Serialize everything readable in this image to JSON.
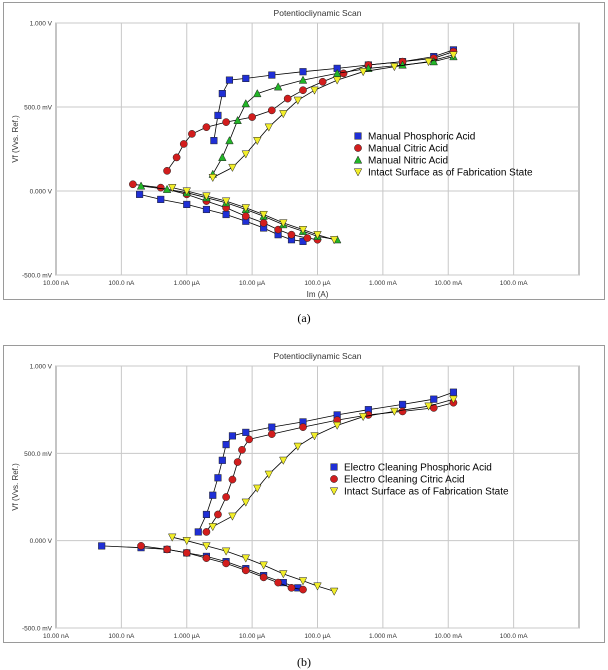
{
  "captions": [
    "(a)",
    "(b)"
  ],
  "colors": {
    "phosphoric": "#1f2fd6",
    "citric": "#d21d1d",
    "nitric": "#22b527",
    "intact": "#f2ee2a",
    "grid": "#c8c8c8",
    "line": "#000000"
  },
  "chart_data": [
    {
      "type": "scatter",
      "title": "Potentiocliynamic Scan",
      "xlabel": "Im  (A)",
      "ylabel": "Vf (Vvs. Ref.)",
      "x_scale": "log",
      "xlim": [
        1e-08,
        1
      ],
      "ylim": [
        -0.5,
        1.0
      ],
      "x_tick_values": [
        1e-08,
        1e-07,
        1e-06,
        1e-05,
        0.0001,
        0.001,
        0.01,
        0.1
      ],
      "x_tick_labels": [
        "10.00 nA",
        "100.0 nA",
        "1.000 µA",
        "10.00 µA",
        "100.0 µA",
        "1.000 mA",
        "10.00 mA",
        "100.0 mA"
      ],
      "y_tick_values": [
        -0.5,
        0.0,
        0.5,
        1.0
      ],
      "y_tick_labels": [
        "-500.0 mV",
        "0.000 V",
        "500.0 mV",
        "1.000 V"
      ],
      "grid": true,
      "legend_position": "right",
      "series": [
        {
          "name": "Manual Phosphoric Acid",
          "marker": "square",
          "color_key": "phosphoric",
          "cathodic": [
            [
              1.9e-07,
              -0.02
            ],
            [
              4e-07,
              -0.05
            ],
            [
              1e-06,
              -0.08
            ],
            [
              2e-06,
              -0.11
            ],
            [
              4e-06,
              -0.14
            ],
            [
              8e-06,
              -0.18
            ],
            [
              1.5e-05,
              -0.22
            ],
            [
              2.5e-05,
              -0.26
            ],
            [
              4e-05,
              -0.29
            ],
            [
              6e-05,
              -0.3
            ]
          ],
          "anodic": [
            [
              2.6e-06,
              0.3
            ],
            [
              3e-06,
              0.45
            ],
            [
              3.5e-06,
              0.58
            ],
            [
              4.5e-06,
              0.66
            ],
            [
              8e-06,
              0.67
            ],
            [
              2e-05,
              0.69
            ],
            [
              6e-05,
              0.71
            ],
            [
              0.0002,
              0.73
            ],
            [
              0.0006,
              0.75
            ],
            [
              0.002,
              0.77
            ],
            [
              0.006,
              0.8
            ],
            [
              0.012,
              0.84
            ]
          ]
        },
        {
          "name": "Manual Citric Acid",
          "marker": "circle",
          "color_key": "citric",
          "cathodic": [
            [
              1.5e-07,
              0.04
            ],
            [
              4e-07,
              0.02
            ],
            [
              1e-06,
              -0.02
            ],
            [
              2e-06,
              -0.06
            ],
            [
              4e-06,
              -0.1
            ],
            [
              8e-06,
              -0.15
            ],
            [
              1.5e-05,
              -0.19
            ],
            [
              2.5e-05,
              -0.23
            ],
            [
              4e-05,
              -0.26
            ],
            [
              7e-05,
              -0.28
            ],
            [
              0.0001,
              -0.29
            ]
          ],
          "anodic": [
            [
              5e-07,
              0.12
            ],
            [
              7e-07,
              0.2
            ],
            [
              9e-07,
              0.28
            ],
            [
              1.2e-06,
              0.34
            ],
            [
              2e-06,
              0.38
            ],
            [
              4e-06,
              0.41
            ],
            [
              1e-05,
              0.44
            ],
            [
              2e-05,
              0.48
            ],
            [
              3.5e-05,
              0.55
            ],
            [
              6e-05,
              0.6
            ],
            [
              0.00012,
              0.65
            ],
            [
              0.00025,
              0.7
            ],
            [
              0.0006,
              0.75
            ],
            [
              0.002,
              0.77
            ],
            [
              0.006,
              0.79
            ],
            [
              0.012,
              0.83
            ]
          ]
        },
        {
          "name": "Manual Nitric Acid",
          "marker": "triangle-up",
          "color_key": "nitric",
          "cathodic": [
            [
              2e-07,
              0.03
            ],
            [
              5e-07,
              0.01
            ],
            [
              1e-06,
              -0.01
            ],
            [
              2e-06,
              -0.04
            ],
            [
              4e-06,
              -0.07
            ],
            [
              8e-06,
              -0.11
            ],
            [
              1.5e-05,
              -0.15
            ],
            [
              3e-05,
              -0.2
            ],
            [
              6e-05,
              -0.24
            ],
            [
              0.0001,
              -0.27
            ],
            [
              0.0002,
              -0.29
            ]
          ],
          "anodic": [
            [
              2.5e-06,
              0.1
            ],
            [
              3.5e-06,
              0.2
            ],
            [
              4.5e-06,
              0.3
            ],
            [
              6e-06,
              0.42
            ],
            [
              8e-06,
              0.52
            ],
            [
              1.2e-05,
              0.58
            ],
            [
              2.5e-05,
              0.62
            ],
            [
              6e-05,
              0.66
            ],
            [
              0.0002,
              0.7
            ],
            [
              0.0006,
              0.73
            ],
            [
              0.002,
              0.75
            ],
            [
              0.006,
              0.77
            ],
            [
              0.012,
              0.8
            ]
          ]
        },
        {
          "name": "Intact Surface as of Fabrication State",
          "marker": "triangle-down",
          "color_key": "intact",
          "cathodic": [
            [
              6e-07,
              0.02
            ],
            [
              1e-06,
              0.0
            ],
            [
              2e-06,
              -0.03
            ],
            [
              4e-06,
              -0.06
            ],
            [
              8e-06,
              -0.1
            ],
            [
              1.5e-05,
              -0.14
            ],
            [
              3e-05,
              -0.19
            ],
            [
              6e-05,
              -0.23
            ],
            [
              0.0001,
              -0.26
            ],
            [
              0.00018,
              -0.29
            ]
          ],
          "anodic": [
            [
              2.5e-06,
              0.08
            ],
            [
              5e-06,
              0.14
            ],
            [
              8e-06,
              0.22
            ],
            [
              1.2e-05,
              0.3
            ],
            [
              1.8e-05,
              0.38
            ],
            [
              3e-05,
              0.46
            ],
            [
              5e-05,
              0.54
            ],
            [
              9e-05,
              0.6
            ],
            [
              0.0002,
              0.66
            ],
            [
              0.0005,
              0.71
            ],
            [
              0.0015,
              0.74
            ],
            [
              0.005,
              0.77
            ],
            [
              0.012,
              0.81
            ]
          ]
        }
      ]
    },
    {
      "type": "scatter",
      "title": "Potentiocliynamic Scan",
      "xlabel": "Im  (A)",
      "ylabel": "Vf (Vvs. Ref.)",
      "x_scale": "log",
      "xlim": [
        1e-08,
        1
      ],
      "ylim": [
        -0.5,
        1.0
      ],
      "x_tick_values": [
        1e-08,
        1e-07,
        1e-06,
        1e-05,
        0.0001,
        0.001,
        0.01,
        0.1
      ],
      "x_tick_labels": [
        "10.00 nA",
        "100.0 nA",
        "1.000 µA",
        "10.00 µA",
        "100.0 µA",
        "1.000 mA",
        "10.00 mA",
        "100.0 mA"
      ],
      "y_tick_values": [
        -0.5,
        0.0,
        0.5,
        1.0
      ],
      "y_tick_labels": [
        "-500.0 mV",
        "0.000 V",
        "500.0 mV",
        "1.000 V"
      ],
      "grid": true,
      "legend_position": "right",
      "series": [
        {
          "name": "Electro Cleaning Phosphoric Acid",
          "marker": "square",
          "color_key": "phosphoric",
          "cathodic": [
            [
              5e-08,
              -0.03
            ],
            [
              2e-07,
              -0.04
            ],
            [
              5e-07,
              -0.05
            ],
            [
              1e-06,
              -0.07
            ],
            [
              2e-06,
              -0.09
            ],
            [
              4e-06,
              -0.12
            ],
            [
              8e-06,
              -0.16
            ],
            [
              1.5e-05,
              -0.2
            ],
            [
              3e-05,
              -0.24
            ],
            [
              5e-05,
              -0.27
            ]
          ],
          "anodic": [
            [
              1.5e-06,
              0.05
            ],
            [
              2e-06,
              0.15
            ],
            [
              2.5e-06,
              0.26
            ],
            [
              3e-06,
              0.36
            ],
            [
              3.5e-06,
              0.46
            ],
            [
              4e-06,
              0.55
            ],
            [
              5e-06,
              0.6
            ],
            [
              8e-06,
              0.62
            ],
            [
              2e-05,
              0.65
            ],
            [
              6e-05,
              0.68
            ],
            [
              0.0002,
              0.72
            ],
            [
              0.0006,
              0.75
            ],
            [
              0.002,
              0.78
            ],
            [
              0.006,
              0.81
            ],
            [
              0.012,
              0.85
            ]
          ]
        },
        {
          "name": "Electro Cleaning Citric Acid",
          "marker": "circle",
          "color_key": "citric",
          "cathodic": [
            [
              2e-07,
              -0.03
            ],
            [
              5e-07,
              -0.05
            ],
            [
              1e-06,
              -0.07
            ],
            [
              2e-06,
              -0.1
            ],
            [
              4e-06,
              -0.13
            ],
            [
              8e-06,
              -0.17
            ],
            [
              1.5e-05,
              -0.21
            ],
            [
              2.5e-05,
              -0.24
            ],
            [
              4e-05,
              -0.27
            ],
            [
              6e-05,
              -0.28
            ]
          ],
          "anodic": [
            [
              2e-06,
              0.05
            ],
            [
              3e-06,
              0.15
            ],
            [
              4e-06,
              0.25
            ],
            [
              5e-06,
              0.35
            ],
            [
              6e-06,
              0.45
            ],
            [
              7e-06,
              0.52
            ],
            [
              9e-06,
              0.58
            ],
            [
              2e-05,
              0.61
            ],
            [
              6e-05,
              0.65
            ],
            [
              0.0002,
              0.69
            ],
            [
              0.0006,
              0.72
            ],
            [
              0.002,
              0.74
            ],
            [
              0.006,
              0.76
            ],
            [
              0.012,
              0.79
            ]
          ]
        },
        {
          "name": "Intact Surface as of Fabrication State",
          "marker": "triangle-down",
          "color_key": "intact",
          "cathodic": [
            [
              6e-07,
              0.02
            ],
            [
              1e-06,
              0.0
            ],
            [
              2e-06,
              -0.03
            ],
            [
              4e-06,
              -0.06
            ],
            [
              8e-06,
              -0.1
            ],
            [
              1.5e-05,
              -0.14
            ],
            [
              3e-05,
              -0.19
            ],
            [
              6e-05,
              -0.23
            ],
            [
              0.0001,
              -0.26
            ],
            [
              0.00018,
              -0.29
            ]
          ],
          "anodic": [
            [
              2.5e-06,
              0.08
            ],
            [
              5e-06,
              0.14
            ],
            [
              8e-06,
              0.22
            ],
            [
              1.2e-05,
              0.3
            ],
            [
              1.8e-05,
              0.38
            ],
            [
              3e-05,
              0.46
            ],
            [
              5e-05,
              0.54
            ],
            [
              9e-05,
              0.6
            ],
            [
              0.0002,
              0.66
            ],
            [
              0.0005,
              0.71
            ],
            [
              0.0015,
              0.74
            ],
            [
              0.005,
              0.77
            ],
            [
              0.012,
              0.81
            ]
          ]
        }
      ]
    }
  ]
}
